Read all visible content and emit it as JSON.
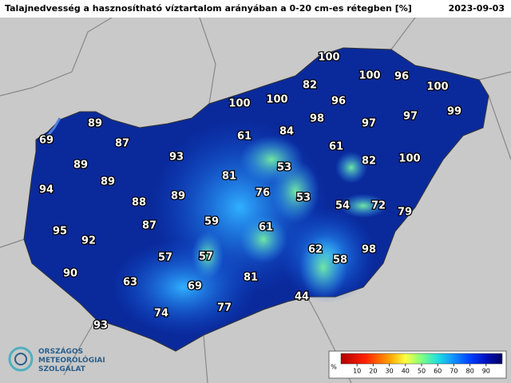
{
  "header": {
    "title": "Talajnedvesség a hasznosítható víztartalom arányában a 0-20 cm-es rétegben [%]",
    "date": "2023-09-03"
  },
  "stations": [
    100,
    100,
    96,
    100,
    82,
    100,
    100,
    96,
    99,
    98,
    97,
    97,
    89,
    61,
    84,
    69,
    87,
    61,
    93,
    53,
    82,
    100,
    89,
    89,
    81,
    94,
    76,
    53,
    88,
    89,
    54,
    72,
    79,
    59,
    61,
    95,
    87,
    92,
    98,
    62,
    57,
    57,
    58,
    90,
    63,
    81,
    69,
    77,
    44,
    74,
    93
  ],
  "legend": {
    "unit": "%",
    "lim": [
      0,
      100
    ],
    "ticks": [
      10,
      20,
      30,
      40,
      50,
      60,
      70,
      80,
      90
    ]
  },
  "logo": {
    "lines": [
      "ORSZÁGOS",
      "METEOROLÓGIAI",
      "SZOLGÁLAT"
    ]
  }
}
